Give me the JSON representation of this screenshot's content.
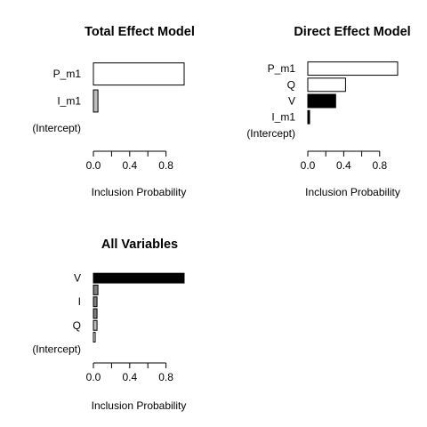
{
  "chart_data": [
    {
      "type": "bar",
      "orientation": "horizontal",
      "title": "Total Effect Model",
      "xlabel": "Inclusion Probability",
      "ylabel": "",
      "xlim": [
        0,
        1
      ],
      "xticks": [
        0.0,
        0.4,
        0.8
      ],
      "xtick_labels": [
        "0.0",
        "0.4",
        "0.8"
      ],
      "categories": [
        "(Intercept)",
        "I_m1",
        "P_m1"
      ],
      "values": [
        0.0,
        0.05,
        1.0
      ],
      "fills": [
        "#ffffff",
        "#bebebe",
        "#ffffff"
      ]
    },
    {
      "type": "bar",
      "orientation": "horizontal",
      "title": "Direct Effect Model",
      "xlabel": "Inclusion Probability",
      "ylabel": "",
      "xlim": [
        0,
        1
      ],
      "xticks": [
        0.0,
        0.4,
        0.8
      ],
      "xtick_labels": [
        "0.0",
        "0.4",
        "0.8"
      ],
      "categories": [
        "(Intercept)",
        "I_m1",
        "V",
        "Q",
        "P_m1"
      ],
      "values": [
        0.0,
        0.02,
        0.31,
        0.42,
        1.0
      ],
      "fills": [
        "#ffffff",
        "#000000",
        "#000000",
        "#ffffff",
        "#ffffff"
      ]
    },
    {
      "type": "bar",
      "orientation": "horizontal",
      "title": "All Variables",
      "xlabel": "Inclusion Probability",
      "ylabel": "",
      "xlim": [
        0,
        1
      ],
      "xticks": [
        0.0,
        0.4,
        0.8
      ],
      "xtick_labels": [
        "0.0",
        "0.4",
        "0.8"
      ],
      "categories": [
        "(Intercept)",
        "",
        "Q",
        "",
        "I",
        "",
        "V"
      ],
      "values": [
        0.0,
        0.02,
        0.04,
        0.04,
        0.04,
        0.05,
        1.0
      ],
      "fills": [
        "#ffffff",
        "#ffffff",
        "#bebebe",
        "#7f7f7f",
        "#7f7f7f",
        "#7f7f7f",
        "#000000"
      ]
    }
  ]
}
